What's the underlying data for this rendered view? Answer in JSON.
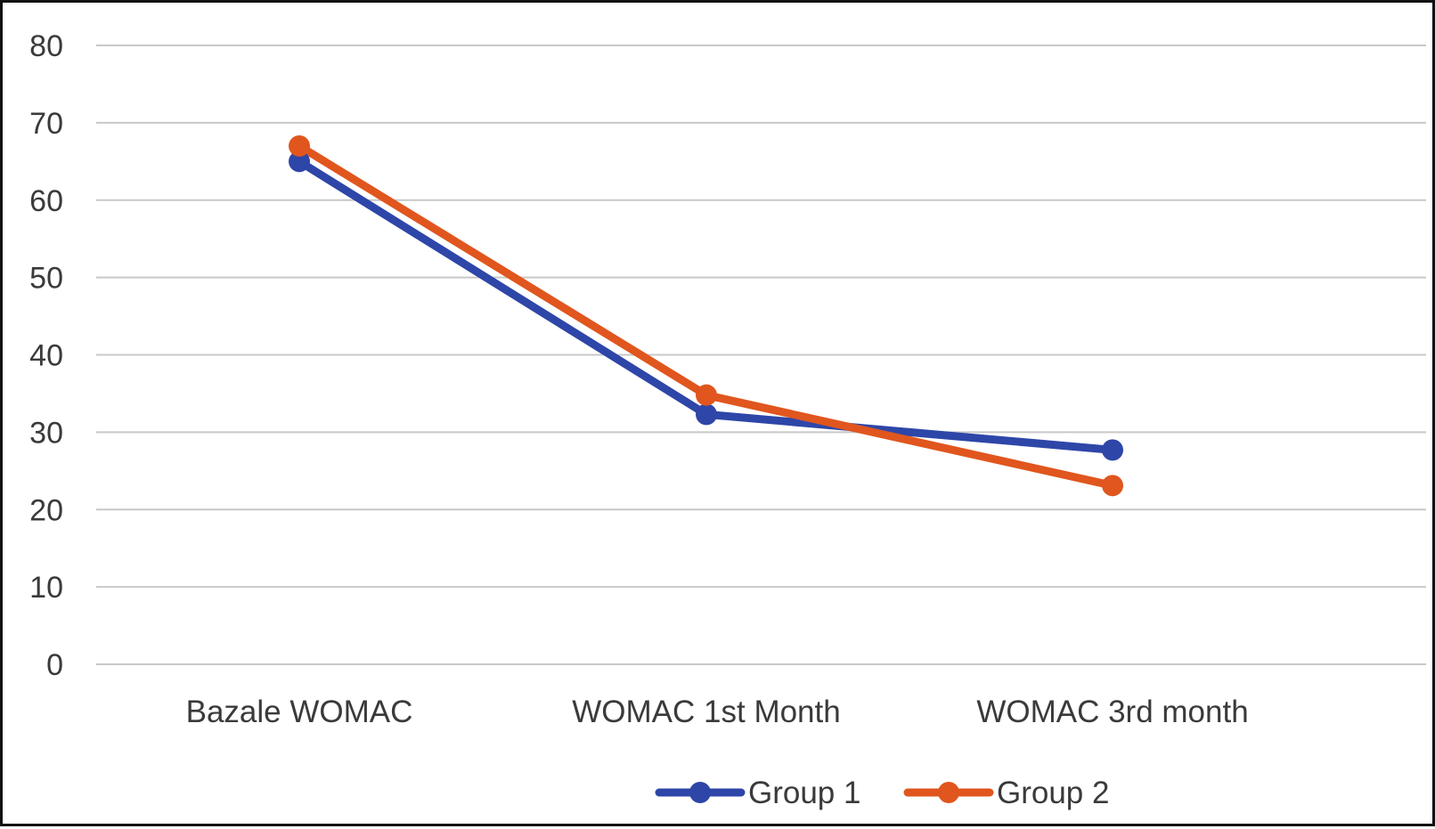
{
  "chart_data": {
    "type": "line",
    "title": "",
    "xlabel": "",
    "ylabel": "",
    "categories": [
      "Bazale WOMAC",
      "WOMAC 1st Month",
      "WOMAC 3rd month"
    ],
    "series": [
      {
        "name": "Group 1",
        "values": [
          65,
          32.3,
          27.7
        ],
        "color": "#2e46a8"
      },
      {
        "name": "Group 2",
        "values": [
          67,
          34.8,
          23.1
        ],
        "color": "#e0561e"
      }
    ],
    "ylim": [
      0,
      80
    ],
    "yticks": [
      0,
      10,
      20,
      30,
      40,
      50,
      60,
      70,
      80
    ],
    "grid": true,
    "legend_position": "bottom"
  }
}
